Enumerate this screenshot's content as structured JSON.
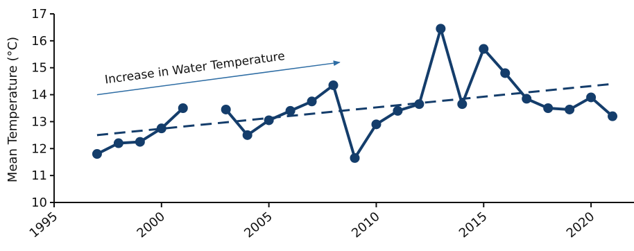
{
  "chart_data": {
    "type": "line",
    "xlabel": "",
    "ylabel": "Mean Temperature (°C)",
    "xlim": [
      1995,
      2022
    ],
    "ylim": [
      10,
      17
    ],
    "x_ticks": [
      1995,
      2000,
      2005,
      2010,
      2015,
      2020
    ],
    "y_ticks": [
      10,
      11,
      12,
      13,
      14,
      15,
      16,
      17
    ],
    "grid": false,
    "colors": {
      "series": "#143d6b",
      "trend": "#143d6b",
      "annotation_arrow": "#2e6da4"
    },
    "series": [
      {
        "x": [
          1997,
          1998,
          1999,
          2000,
          2001,
          2003,
          2004,
          2005,
          2006,
          2007,
          2008,
          2009,
          2010,
          2011,
          2012,
          2013,
          2014,
          2015,
          2016,
          2017,
          2018,
          2019,
          2020,
          2021
        ],
        "y": [
          11.8,
          12.2,
          12.25,
          12.75,
          13.5,
          13.45,
          12.5,
          13.05,
          13.4,
          13.75,
          14.35,
          11.65,
          12.9,
          13.4,
          13.65,
          16.45,
          13.65,
          15.7,
          14.8,
          13.85,
          13.5,
          13.45,
          13.9,
          13.2
        ],
        "gap_after_x": 2001,
        "style": "solid-with-markers"
      }
    ],
    "trendline": {
      "x": [
        1997,
        2021
      ],
      "y": [
        12.5,
        14.4
      ],
      "style": "dashed"
    },
    "annotations": [
      {
        "text": "Increase in Water Temperature",
        "arrow": {
          "x_start": 1997,
          "y_start": 14.0,
          "x_end": 2008.3,
          "y_end": 15.2
        }
      }
    ]
  }
}
